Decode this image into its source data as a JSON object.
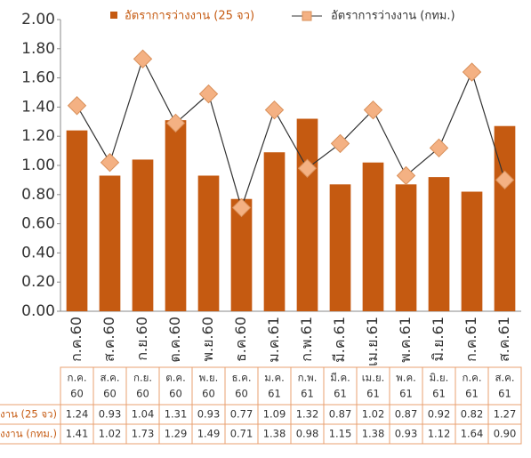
{
  "chart_data": {
    "type": "bar",
    "categories": [
      "ก.ค.60",
      "ส.ค.60",
      "ก.ย.60",
      "ต.ค.60",
      "พ.ย.60",
      "ธ.ค.60",
      "ม.ค.61",
      "ก.พ.61",
      "มี.ค.61",
      "เม.ย.61",
      "พ.ค.61",
      "มิ.ย.61",
      "ก.ค.61",
      "ส.ค.61"
    ],
    "table_header": [
      [
        "ก.ค.",
        "60"
      ],
      [
        "ส.ค.",
        "60"
      ],
      [
        "ก.ย.",
        "60"
      ],
      [
        "ต.ค.",
        "60"
      ],
      [
        "พ.ย.",
        "60"
      ],
      [
        "ธ.ค.",
        "60"
      ],
      [
        "ม.ค.",
        "61"
      ],
      [
        "ก.พ.",
        "61"
      ],
      [
        "มี.ค.",
        "61"
      ],
      [
        "เม.ย.",
        "61"
      ],
      [
        "พ.ค.",
        "61"
      ],
      [
        "มิ.ย.",
        "61"
      ],
      [
        "ก.ค.",
        "61"
      ],
      [
        "ส.ค.",
        "61"
      ]
    ],
    "series": [
      {
        "name": "อัตราการว่างงาน (25 จว)",
        "type": "bar",
        "color": "#c55a11",
        "values": [
          1.24,
          0.93,
          1.04,
          1.31,
          0.93,
          0.77,
          1.09,
          1.32,
          0.87,
          1.02,
          0.87,
          0.92,
          0.82,
          1.27
        ],
        "value_labels": [
          "1.24",
          "0.93",
          "1.04",
          "1.31",
          "0.93",
          "0.77",
          "1.09",
          "1.32",
          "0.87",
          "1.02",
          "0.87",
          "0.92",
          "0.82",
          "1.27"
        ]
      },
      {
        "name": "อัตราการว่างงาน (กทม.)",
        "type": "line",
        "color": "#f4b183",
        "values": [
          1.41,
          1.02,
          1.73,
          1.29,
          1.49,
          0.71,
          1.38,
          0.98,
          1.15,
          1.38,
          0.93,
          1.12,
          1.64,
          0.9
        ],
        "value_labels": [
          "1.41",
          "1.02",
          "1.73",
          "1.29",
          "1.49",
          "0.71",
          "1.38",
          "0.98",
          "1.15",
          "1.38",
          "0.93",
          "1.12",
          "1.64",
          "0.90"
        ]
      }
    ],
    "ylim": [
      0,
      2
    ],
    "yticks": [
      {
        "value": 0,
        "label": "0.00"
      },
      {
        "value": 0.2,
        "label": "0.20"
      },
      {
        "value": 0.4,
        "label": "0.40"
      },
      {
        "value": 0.6,
        "label": "0.60"
      },
      {
        "value": 0.8,
        "label": "0.80"
      },
      {
        "value": 1,
        "label": "1.00"
      },
      {
        "value": 1.2,
        "label": "1.20"
      },
      {
        "value": 1.4,
        "label": "1.40"
      },
      {
        "value": 1.6,
        "label": "1.60"
      },
      {
        "value": 1.8,
        "label": "1.80"
      },
      {
        "value": 2,
        "label": "2.00"
      }
    ],
    "grid": false,
    "legend": "top"
  }
}
